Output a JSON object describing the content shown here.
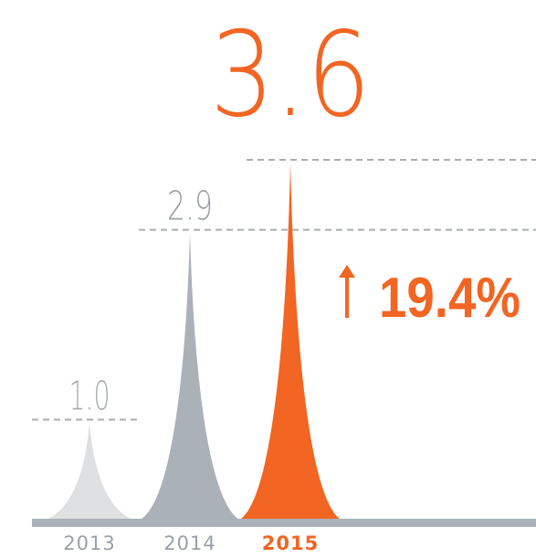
{
  "chart_data": {
    "type": "spike",
    "categories": [
      "2013",
      "2014",
      "2015"
    ],
    "values": [
      1.0,
      2.9,
      3.6
    ],
    "value_labels": [
      "1.0",
      "2.9",
      "3.6"
    ],
    "colors": [
      "#dfe0e2",
      "#abb1b9",
      "#f26522"
    ],
    "annotation": "19.4%"
  }
}
